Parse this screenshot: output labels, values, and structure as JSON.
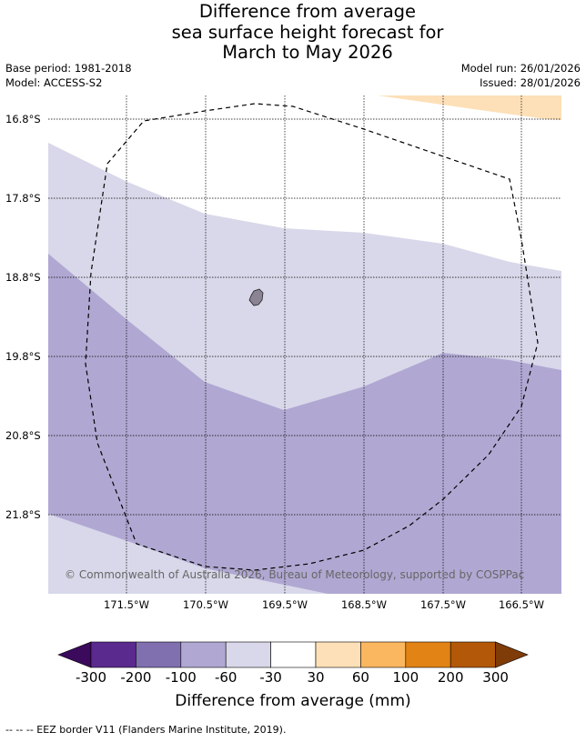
{
  "title": {
    "line1": "Difference from average",
    "line2": "sea surface height forecast for",
    "line3": "March to May 2026"
  },
  "meta": {
    "base_period": "Base period: 1981-2018",
    "model": "Model: ACCESS-S2",
    "model_run": "Model run: 26/01/2026",
    "issued": "Issued: 28/01/2026"
  },
  "map": {
    "lat_labels": [
      "16.8°S",
      "17.8°S",
      "18.8°S",
      "19.8°S",
      "20.8°S",
      "21.8°S"
    ],
    "lon_labels": [
      "171.5°W",
      "170.5°W",
      "169.5°W",
      "168.5°W",
      "167.5°W",
      "166.5°W"
    ],
    "land_color": "#8a8494",
    "eez_line_style": "dashed",
    "copyright": "© Commonwealth of Australia 2026, Bureau of Meteorology, supported by COSPPac"
  },
  "colorbar": {
    "ticks": [
      "-300",
      "-200",
      "-100",
      "-60",
      "-30",
      "30",
      "60",
      "100",
      "200",
      "300"
    ],
    "colors": [
      "#5a2a8e",
      "#8070b0",
      "#b0a8d2",
      "#d8d8ea",
      "#ffffff",
      "#fde0b8",
      "#fbb75f",
      "#e18315",
      "#b35808"
    ],
    "low_extend_color": "#3b0a5c",
    "high_extend_color": "#7f3b08",
    "label": "Difference from average (mm)"
  },
  "footnote": "--  --  -- EEZ border V11 (Flanders Marine Institute, 2019)."
}
